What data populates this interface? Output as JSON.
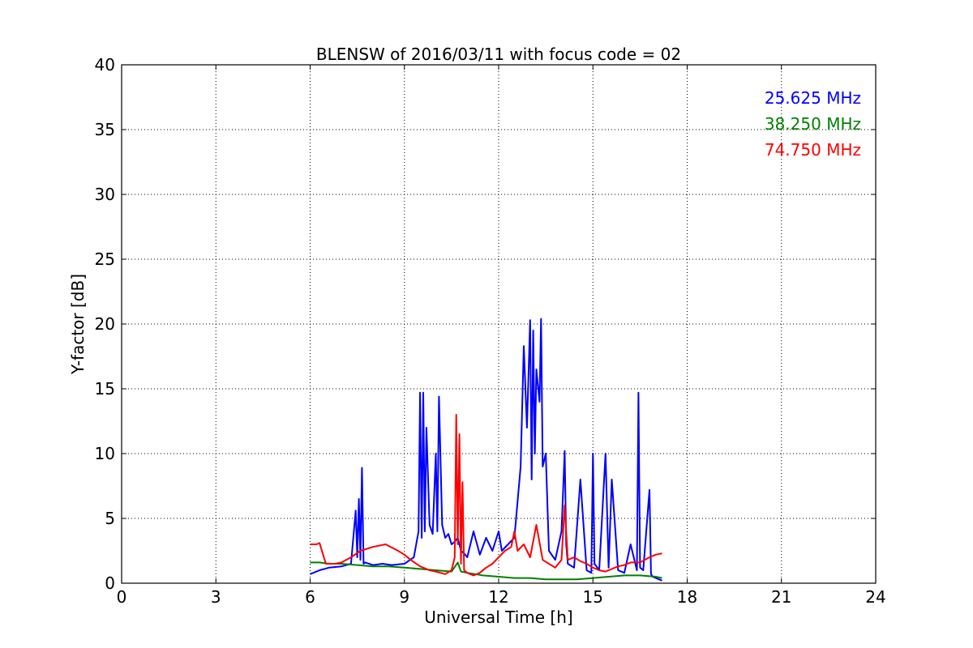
{
  "chart_data": {
    "type": "line",
    "title": "BLENSW of 2016/03/11 with focus code = 02",
    "xlabel": "Universal Time [h]",
    "ylabel": "Y-factor [dB]",
    "xlim": [
      0,
      24
    ],
    "ylim": [
      0,
      40
    ],
    "xticks": [
      0,
      3,
      6,
      9,
      12,
      15,
      18,
      21,
      24
    ],
    "yticks": [
      0,
      5,
      10,
      15,
      20,
      25,
      30,
      35,
      40
    ],
    "grid": true,
    "legend_position": "top-right",
    "series": [
      {
        "name": "25.625 MHz",
        "color": "#0000ff",
        "x": [
          6.0,
          6.3,
          6.6,
          7.0,
          7.3,
          7.45,
          7.5,
          7.55,
          7.6,
          7.65,
          7.7,
          7.75,
          8.0,
          8.3,
          8.6,
          9.0,
          9.3,
          9.45,
          9.5,
          9.55,
          9.6,
          9.65,
          9.7,
          9.8,
          9.9,
          10.0,
          10.05,
          10.1,
          10.2,
          10.3,
          10.4,
          10.5,
          10.6,
          10.7,
          10.8,
          10.9,
          11.0,
          11.2,
          11.4,
          11.6,
          11.8,
          12.0,
          12.1,
          12.3,
          12.5,
          12.7,
          12.8,
          12.9,
          13.0,
          13.05,
          13.1,
          13.15,
          13.2,
          13.3,
          13.35,
          13.4,
          13.5,
          13.6,
          13.8,
          14.0,
          14.1,
          14.15,
          14.2,
          14.4,
          14.6,
          14.8,
          14.95,
          15.0,
          15.05,
          15.2,
          15.4,
          15.5,
          15.6,
          15.8,
          16.0,
          16.2,
          16.4,
          16.45,
          16.5,
          16.6,
          16.8,
          16.85,
          16.9,
          17.0,
          17.2
        ],
        "y": [
          0.7,
          1.0,
          1.2,
          1.3,
          1.5,
          5.6,
          2.0,
          6.5,
          1.8,
          8.9,
          1.5,
          1.6,
          1.4,
          1.5,
          1.4,
          1.5,
          2.0,
          4.0,
          14.7,
          3.5,
          14.7,
          4.0,
          12.0,
          4.5,
          3.8,
          10.0,
          4.0,
          14.4,
          4.5,
          3.5,
          3.8,
          3.0,
          3.2,
          3.5,
          2.5,
          2.3,
          2.0,
          4.0,
          2.2,
          3.5,
          2.5,
          4.0,
          2.5,
          3.0,
          3.5,
          9.0,
          18.3,
          12.0,
          20.3,
          8.0,
          19.5,
          10.0,
          16.5,
          14.0,
          20.4,
          9.0,
          10.0,
          2.5,
          1.8,
          4.0,
          10.2,
          3.0,
          1.5,
          1.2,
          8.0,
          1.0,
          0.8,
          10.0,
          1.5,
          1.0,
          10.0,
          1.2,
          8.0,
          1.0,
          0.8,
          3.0,
          1.0,
          14.7,
          1.2,
          1.0,
          7.2,
          0.7,
          0.5,
          0.4,
          0.2
        ]
      },
      {
        "name": "38.250 MHz",
        "color": "#008000",
        "x": [
          6.0,
          6.3,
          6.6,
          7.0,
          7.5,
          8.0,
          8.5,
          9.0,
          9.5,
          10.0,
          10.5,
          10.7,
          10.8,
          11.0,
          11.5,
          12.0,
          12.5,
          13.0,
          13.5,
          14.0,
          14.5,
          15.0,
          15.5,
          16.0,
          16.5,
          17.0,
          17.2
        ],
        "y": [
          1.6,
          1.6,
          1.5,
          1.5,
          1.4,
          1.3,
          1.3,
          1.2,
          1.1,
          1.0,
          0.9,
          1.6,
          0.9,
          0.8,
          0.6,
          0.5,
          0.4,
          0.4,
          0.3,
          0.3,
          0.3,
          0.4,
          0.5,
          0.6,
          0.6,
          0.5,
          0.4
        ]
      },
      {
        "name": "74.750 MHz",
        "color": "#ff0000",
        "x": [
          6.0,
          6.2,
          6.3,
          6.5,
          6.8,
          7.0,
          7.3,
          7.6,
          8.0,
          8.4,
          8.8,
          9.0,
          9.2,
          9.5,
          9.8,
          10.0,
          10.3,
          10.5,
          10.6,
          10.65,
          10.7,
          10.75,
          10.8,
          10.85,
          10.9,
          11.0,
          11.2,
          11.4,
          11.6,
          11.8,
          12.0,
          12.2,
          12.4,
          12.5,
          12.6,
          12.8,
          13.0,
          13.2,
          13.4,
          13.6,
          13.8,
          14.0,
          14.1,
          14.2,
          14.4,
          14.6,
          14.8,
          15.0,
          15.2,
          15.4,
          15.6,
          15.8,
          16.0,
          16.2,
          16.5,
          16.8,
          17.0,
          17.2
        ],
        "y": [
          3.0,
          3.0,
          3.1,
          1.5,
          1.5,
          1.6,
          2.0,
          2.5,
          2.8,
          3.0,
          2.5,
          2.2,
          1.8,
          1.3,
          1.0,
          0.9,
          0.7,
          1.0,
          2.0,
          13.0,
          3.0,
          11.5,
          1.5,
          7.8,
          1.0,
          0.8,
          0.6,
          0.8,
          1.2,
          1.5,
          2.0,
          2.5,
          2.8,
          4.0,
          2.5,
          3.0,
          2.0,
          4.5,
          1.8,
          1.5,
          1.2,
          1.8,
          6.0,
          1.8,
          2.0,
          1.7,
          1.5,
          1.2,
          1.0,
          0.9,
          1.1,
          1.3,
          1.4,
          1.6,
          1.6,
          2.0,
          2.2,
          2.3
        ]
      }
    ]
  }
}
